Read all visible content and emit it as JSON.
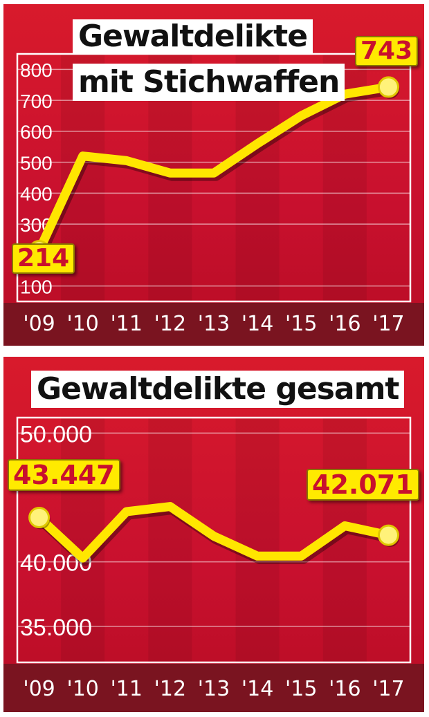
{
  "colors": {
    "background": "#c8102e",
    "line": "#ffe600",
    "label_box": "#ffea00",
    "label_text": "#c8102e",
    "grid": "#ffffff"
  },
  "chart_data": [
    {
      "type": "line",
      "title": "Gewaltdelikte mit Stichwaffen",
      "title_lines": [
        "Gewaltdelikte",
        "mit Stichwaffen"
      ],
      "categories": [
        "'09",
        "'10",
        "'11",
        "'12",
        "'13",
        "'14",
        "'15",
        "'16",
        "'17"
      ],
      "y_ticks": [
        "100",
        "300",
        "400",
        "500",
        "600",
        "700",
        "800"
      ],
      "ylim": [
        50,
        850
      ],
      "grid": true,
      "series": [
        {
          "values": [
            214,
            520,
            505,
            465,
            465,
            560,
            650,
            720,
            743
          ]
        }
      ],
      "annotations": [
        {
          "label": "214",
          "index": 0
        },
        {
          "label": "743",
          "index": 8
        }
      ]
    },
    {
      "type": "line",
      "title": "Gewaltdelikte gesamt",
      "title_lines": [
        "Gewaltdelikte gesamt"
      ],
      "categories": [
        "'09",
        "'10",
        "'11",
        "'12",
        "'13",
        "'14",
        "'15",
        "'16",
        "'17"
      ],
      "y_ticks": [
        "35.000",
        "40.000",
        "50.000"
      ],
      "ylim": [
        32200,
        51200
      ],
      "grid": true,
      "series": [
        {
          "values": [
            43447,
            40300,
            43900,
            44300,
            42000,
            40450,
            40450,
            42800,
            42071
          ]
        }
      ],
      "annotations": [
        {
          "label": "43.447",
          "index": 0
        },
        {
          "label": "42.071",
          "index": 8
        }
      ]
    }
  ]
}
